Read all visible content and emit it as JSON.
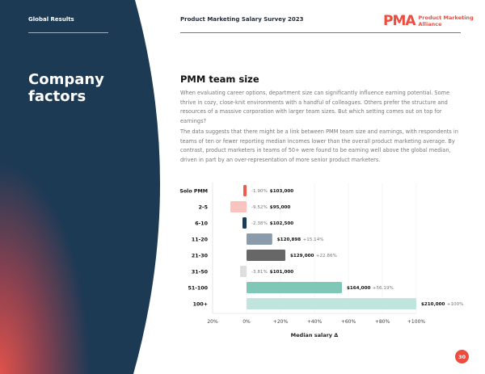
{
  "header": {
    "section": "Global Results",
    "report_title": "Product Marketing Salary Survey 2023",
    "logo_mark": "PMA",
    "logo_text_line1": "Product Marketing",
    "logo_text_line2": "Alliance"
  },
  "sidebar": {
    "title_line1": "Company",
    "title_line2": "factors"
  },
  "main": {
    "heading": "PMM team size",
    "paragraphs": [
      "When evaluating career options, department size can significantly influence earning potential. Some thrive in cozy, close-knit environments with a handful of colleagues. Others prefer the structure and resources of a massive corporation with larger team sizes. But which setting comes out on top for earnings?",
      "The data suggests that there might be a link between PMM team size and earnings, with respondents in teams of ten or fewer reporting median incomes lower than the overall product marketing average. By contrast, product marketers in teams of 50+ were found to be earning well above the global median, driven in part by an over-representation of more senior product marketers."
    ]
  },
  "chart_data": {
    "type": "bar",
    "orientation": "horizontal",
    "xlabel": "Median salary Δ",
    "xlim": [
      -20,
      100
    ],
    "xticks": [
      -20,
      0,
      20,
      40,
      60,
      80,
      100
    ],
    "xtick_labels": [
      "20%",
      "0%",
      "+20%",
      "+40%",
      "+60%",
      "+80%",
      "+100%"
    ],
    "categories": [
      "Solo PMM",
      "2-5",
      "6-10",
      "11-20",
      "21-30",
      "31-50",
      "51-100",
      "100+"
    ],
    "values": [
      -1.9,
      -9.52,
      -2.38,
      15.14,
      22.86,
      -3.81,
      56.19,
      100
    ],
    "value_labels": [
      "-1.90%",
      "-9.52%",
      "-2.38%",
      "+15.14%",
      "+22.86%",
      "-3.81%",
      "+56.19%",
      "+100%"
    ],
    "salaries": [
      "$103,000",
      "$95,000",
      "$102,500",
      "$120,898",
      "$129,000",
      "$101,000",
      "$164,000",
      "$210,000"
    ],
    "colors": [
      "#ef5a4a",
      "#f9c4c0",
      "#1d3a55",
      "#8a9bab",
      "#676767",
      "#dedede",
      "#7fc8b8",
      "#bfe5dc"
    ]
  },
  "footer": {
    "page_number": "30"
  }
}
